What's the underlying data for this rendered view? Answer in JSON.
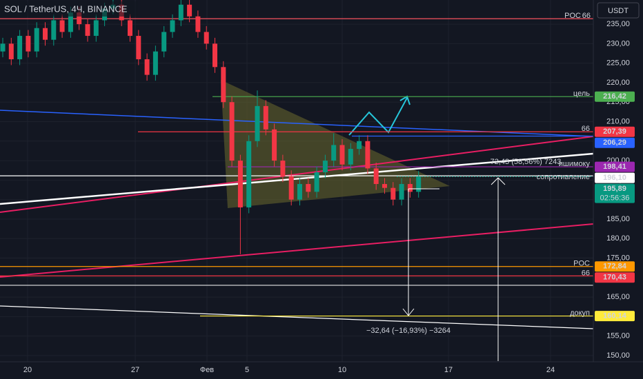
{
  "header": {
    "symbol": "SOL / TetherUS, 4Ч, BINANCE",
    "currency": "USDT"
  },
  "chart_data": {
    "type": "candlestick",
    "title": "SOL / TetherUS, 4Ч, BINANCE",
    "open": [
      228,
      230,
      226,
      232,
      228,
      234,
      231,
      236,
      233,
      238,
      235,
      232,
      236,
      239,
      240,
      236,
      232,
      226,
      222,
      228,
      233,
      236,
      240,
      237,
      233,
      230,
      224,
      215,
      200,
      188,
      205,
      214,
      208,
      200,
      196,
      190,
      194,
      192,
      197,
      200,
      204,
      199,
      203,
      205,
      198,
      194,
      193,
      190,
      194,
      192
    ],
    "high": [
      231.5,
      231.5,
      233.5,
      233.5,
      235.5,
      235.5,
      237.5,
      237.5,
      239.5,
      239.5,
      236.5,
      237.5,
      240.5,
      241.5,
      241.5,
      237.5,
      233.5,
      227.5,
      229.5,
      234.5,
      237.5,
      241.5,
      241.5,
      238.5,
      234.5,
      231.5,
      225.5,
      216.5,
      201.5,
      206.5,
      218,
      215.5,
      209.5,
      201.5,
      197.5,
      195.5,
      195.5,
      198.5,
      201.5,
      207,
      205.5,
      204.5,
      206.5,
      206.5,
      199.5,
      195.5,
      194.5,
      195.5,
      195.5,
      197.4
    ],
    "low": [
      226.5,
      224.5,
      224.5,
      226.5,
      226.5,
      229.5,
      229.5,
      231.5,
      231.5,
      233.5,
      230.5,
      230.5,
      234.5,
      237.5,
      234.5,
      230.5,
      224.5,
      220.5,
      220.5,
      226.5,
      231.5,
      234.5,
      235.5,
      231.5,
      228.5,
      222.5,
      213.5,
      198.5,
      176,
      186.5,
      203.5,
      206.5,
      198.5,
      194.5,
      188.5,
      188.5,
      190.5,
      190.5,
      195.5,
      198.5,
      197.5,
      197.5,
      201.5,
      196.5,
      192.5,
      191.5,
      188.5,
      188.5,
      190.5,
      190.5
    ],
    "close": [
      230,
      226,
      232,
      228,
      234,
      231,
      236,
      233,
      238,
      235,
      232,
      236,
      239,
      240,
      236,
      232,
      226,
      222,
      228,
      233,
      236,
      240,
      237,
      233,
      230,
      224,
      215,
      200,
      188,
      205,
      214,
      208,
      200,
      196,
      190,
      194,
      192,
      197,
      200,
      204,
      199,
      203,
      205,
      198,
      194,
      193,
      190,
      194,
      192,
      195.89
    ],
    "up_color": "#089981",
    "down_color": "#f23645",
    "x_labels": [
      "20",
      "27",
      "Фев",
      "5",
      "10",
      "17",
      "24"
    ],
    "ylim": [
      148.4,
      241.2
    ],
    "yticks": [
      {
        "value": 150,
        "label": "150,00"
      },
      {
        "value": 155,
        "label": "155,00"
      },
      {
        "value": 160,
        "label": "160,00"
      },
      {
        "value": 165,
        "label": "165,00"
      },
      {
        "value": 170,
        "label": "170,00"
      },
      {
        "value": 175,
        "label": "175,00"
      },
      {
        "value": 180,
        "label": "180,00"
      },
      {
        "value": 185,
        "label": "185,00"
      },
      {
        "value": 190,
        "label": "190,00"
      },
      {
        "value": 195,
        "label": "195,00"
      },
      {
        "value": 200,
        "label": "200,00"
      },
      {
        "value": 205,
        "label": "205,00"
      },
      {
        "value": 210,
        "label": "210,00"
      },
      {
        "value": 215,
        "label": "215,00"
      },
      {
        "value": 220,
        "label": "220,00"
      },
      {
        "value": 225,
        "label": "225,00"
      },
      {
        "value": 230,
        "label": "230,00"
      },
      {
        "value": 235,
        "label": "235,00"
      }
    ],
    "levels": [
      {
        "name": "POC",
        "value": 236.4,
        "color": "#f7525f"
      },
      {
        "name": "66",
        "value": 236.4,
        "color": "#f7525f"
      },
      {
        "name": "цель",
        "value": 216.42,
        "value_label": "216,42",
        "color": "#4caf50"
      },
      {
        "name": "66",
        "value": 207.39,
        "value_label": "207,39",
        "color": "#f23645"
      },
      {
        "value": 206.29,
        "value_label": "206,29",
        "color": "#2962ff"
      },
      {
        "name": "ишимоку",
        "value": 198.41,
        "value_label": "198,41",
        "color": "#9c27b0"
      },
      {
        "name": "сопротивление",
        "value": 196.1,
        "value_label": "196,10",
        "color": "#ffffff"
      },
      {
        "value": 195.89,
        "value_label": "195,89",
        "countdown": "02:56:36",
        "color": "#089981"
      },
      {
        "name": "POC",
        "value": 172.84,
        "value_label": "172,84",
        "color": "#ff9800"
      },
      {
        "name": "66",
        "value": 170.43,
        "value_label": "170,43",
        "color": "#f23645"
      },
      {
        "name": "докуп",
        "value": 160.14,
        "value_label": "160,14",
        "color": "#ffeb3b"
      }
    ],
    "annotations": [
      "72,43 (58,56%) 7243",
      "−32,64 (−16,93%) −3264"
    ]
  }
}
